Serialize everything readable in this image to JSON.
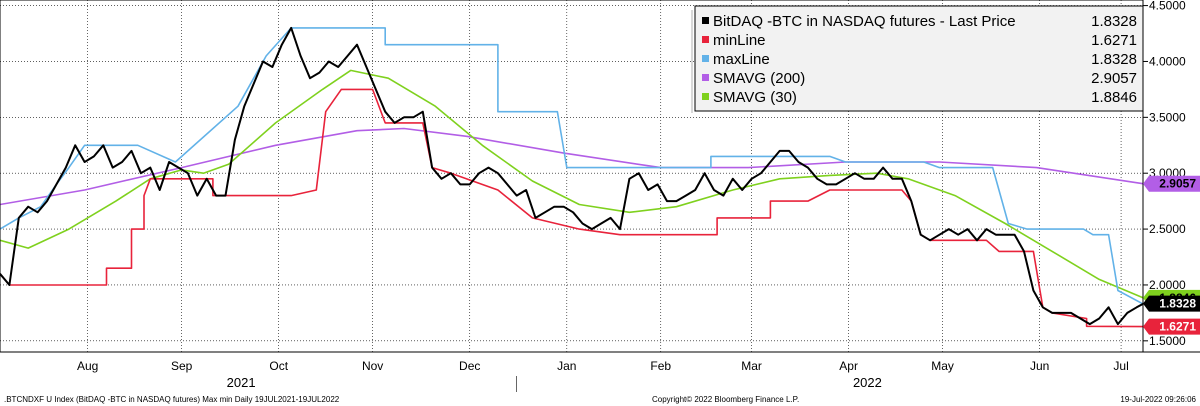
{
  "chart_data": {
    "type": "line",
    "xlim": [
      "2021-07-19",
      "2022-07-19"
    ],
    "ylim": [
      1.4,
      4.55
    ],
    "y_ticks": [
      "1.5000",
      "2.0000",
      "2.5000",
      "3.0000",
      "3.5000",
      "4.0000",
      "4.5000"
    ],
    "y_tick_values": [
      1.5,
      2.0,
      2.5,
      3.0,
      3.5,
      4.0,
      4.5
    ],
    "x_ticks": [
      {
        "label": "Aug",
        "date": "2021-08-16"
      },
      {
        "label": "Sep",
        "date": "2021-09-15"
      },
      {
        "label": "Oct",
        "date": "2021-10-16"
      },
      {
        "label": "Nov",
        "date": "2021-11-15"
      },
      {
        "label": "Dec",
        "date": "2021-12-16"
      },
      {
        "label": "Jan",
        "date": "2022-01-16"
      },
      {
        "label": "Feb",
        "date": "2022-02-15"
      },
      {
        "label": "Mar",
        "date": "2022-03-16"
      },
      {
        "label": "Apr",
        "date": "2022-04-16"
      },
      {
        "label": "May",
        "date": "2022-05-16"
      },
      {
        "label": "Jun",
        "date": "2022-06-16"
      },
      {
        "label": "Jul",
        "date": "2022-07-12"
      }
    ],
    "year_labels": [
      {
        "label": "2021",
        "date": "2021-10-04"
      },
      {
        "label": "2022",
        "date": "2022-04-22"
      }
    ],
    "year_divider": "2021-12-31",
    "grid": true,
    "legend_position": "top-right",
    "series": [
      {
        "name": "BitDAQ -BTC in NASDAQ futures - Last Price",
        "last_value": "1.8328",
        "color": "#000000",
        "points": [
          [
            "2021-07-19",
            2.1
          ],
          [
            "2021-07-22",
            2.0
          ],
          [
            "2021-07-25",
            2.6
          ],
          [
            "2021-07-28",
            2.7
          ],
          [
            "2021-07-31",
            2.65
          ],
          [
            "2021-08-03",
            2.75
          ],
          [
            "2021-08-06",
            2.9
          ],
          [
            "2021-08-09",
            3.05
          ],
          [
            "2021-08-12",
            3.25
          ],
          [
            "2021-08-15",
            3.1
          ],
          [
            "2021-08-18",
            3.15
          ],
          [
            "2021-08-21",
            3.25
          ],
          [
            "2021-08-24",
            3.05
          ],
          [
            "2021-08-27",
            3.1
          ],
          [
            "2021-08-30",
            3.2
          ],
          [
            "2021-09-02",
            3.0
          ],
          [
            "2021-09-05",
            3.05
          ],
          [
            "2021-09-08",
            2.85
          ],
          [
            "2021-09-11",
            3.1
          ],
          [
            "2021-09-14",
            3.05
          ],
          [
            "2021-09-17",
            3.0
          ],
          [
            "2021-09-20",
            2.8
          ],
          [
            "2021-09-23",
            2.95
          ],
          [
            "2021-09-26",
            2.8
          ],
          [
            "2021-09-29",
            2.8
          ],
          [
            "2021-10-02",
            3.3
          ],
          [
            "2021-10-05",
            3.6
          ],
          [
            "2021-10-08",
            3.8
          ],
          [
            "2021-10-11",
            4.0
          ],
          [
            "2021-10-14",
            3.95
          ],
          [
            "2021-10-17",
            4.15
          ],
          [
            "2021-10-20",
            4.3
          ],
          [
            "2021-10-23",
            4.05
          ],
          [
            "2021-10-26",
            3.85
          ],
          [
            "2021-10-29",
            3.9
          ],
          [
            "2021-11-01",
            4.0
          ],
          [
            "2021-11-04",
            3.95
          ],
          [
            "2021-11-07",
            4.05
          ],
          [
            "2021-11-10",
            4.15
          ],
          [
            "2021-11-13",
            3.95
          ],
          [
            "2021-11-16",
            3.75
          ],
          [
            "2021-11-19",
            3.55
          ],
          [
            "2021-11-22",
            3.45
          ],
          [
            "2021-11-25",
            3.5
          ],
          [
            "2021-11-28",
            3.5
          ],
          [
            "2021-12-01",
            3.55
          ],
          [
            "2021-12-04",
            3.05
          ],
          [
            "2021-12-07",
            2.95
          ],
          [
            "2021-12-10",
            3.0
          ],
          [
            "2021-12-13",
            2.9
          ],
          [
            "2021-12-16",
            2.9
          ],
          [
            "2021-12-19",
            3.0
          ],
          [
            "2021-12-22",
            3.05
          ],
          [
            "2021-12-25",
            3.0
          ],
          [
            "2021-12-28",
            2.9
          ],
          [
            "2021-12-31",
            2.8
          ],
          [
            "2022-01-03",
            2.85
          ],
          [
            "2022-01-06",
            2.6
          ],
          [
            "2022-01-09",
            2.65
          ],
          [
            "2022-01-12",
            2.7
          ],
          [
            "2022-01-15",
            2.7
          ],
          [
            "2022-01-18",
            2.65
          ],
          [
            "2022-01-21",
            2.55
          ],
          [
            "2022-01-24",
            2.5
          ],
          [
            "2022-01-27",
            2.55
          ],
          [
            "2022-01-30",
            2.6
          ],
          [
            "2022-02-02",
            2.5
          ],
          [
            "2022-02-05",
            2.95
          ],
          [
            "2022-02-08",
            3.0
          ],
          [
            "2022-02-11",
            2.85
          ],
          [
            "2022-02-14",
            2.9
          ],
          [
            "2022-02-17",
            2.75
          ],
          [
            "2022-02-20",
            2.75
          ],
          [
            "2022-02-23",
            2.8
          ],
          [
            "2022-02-26",
            2.85
          ],
          [
            "2022-03-01",
            3.0
          ],
          [
            "2022-03-04",
            2.85
          ],
          [
            "2022-03-07",
            2.8
          ],
          [
            "2022-03-10",
            2.95
          ],
          [
            "2022-03-13",
            2.85
          ],
          [
            "2022-03-16",
            2.95
          ],
          [
            "2022-03-19",
            3.0
          ],
          [
            "2022-03-22",
            3.1
          ],
          [
            "2022-03-25",
            3.2
          ],
          [
            "2022-03-28",
            3.2
          ],
          [
            "2022-03-31",
            3.1
          ],
          [
            "2022-04-03",
            3.05
          ],
          [
            "2022-04-06",
            2.95
          ],
          [
            "2022-04-09",
            2.9
          ],
          [
            "2022-04-12",
            2.9
          ],
          [
            "2022-04-15",
            2.95
          ],
          [
            "2022-04-18",
            3.0
          ],
          [
            "2022-04-21",
            2.95
          ],
          [
            "2022-04-24",
            2.95
          ],
          [
            "2022-04-27",
            3.05
          ],
          [
            "2022-04-30",
            2.95
          ],
          [
            "2022-05-03",
            2.95
          ],
          [
            "2022-05-06",
            2.75
          ],
          [
            "2022-05-09",
            2.45
          ],
          [
            "2022-05-12",
            2.4
          ],
          [
            "2022-05-15",
            2.45
          ],
          [
            "2022-05-18",
            2.5
          ],
          [
            "2022-05-21",
            2.45
          ],
          [
            "2022-05-24",
            2.5
          ],
          [
            "2022-05-27",
            2.4
          ],
          [
            "2022-05-30",
            2.5
          ],
          [
            "2022-06-02",
            2.45
          ],
          [
            "2022-06-05",
            2.45
          ],
          [
            "2022-06-08",
            2.45
          ],
          [
            "2022-06-11",
            2.3
          ],
          [
            "2022-06-14",
            1.95
          ],
          [
            "2022-06-17",
            1.8
          ],
          [
            "2022-06-20",
            1.75
          ],
          [
            "2022-06-23",
            1.75
          ],
          [
            "2022-06-26",
            1.75
          ],
          [
            "2022-06-29",
            1.7
          ],
          [
            "2022-07-02",
            1.65
          ],
          [
            "2022-07-05",
            1.7
          ],
          [
            "2022-07-08",
            1.8
          ],
          [
            "2022-07-11",
            1.65
          ],
          [
            "2022-07-14",
            1.75
          ],
          [
            "2022-07-17",
            1.8
          ],
          [
            "2022-07-19",
            1.83
          ]
        ]
      },
      {
        "name": "minLine",
        "last_value": "1.6271",
        "color": "#e8233b",
        "points": [
          [
            "2021-07-19",
            2.1
          ],
          [
            "2021-07-22",
            2.0
          ],
          [
            "2021-08-22",
            2.0
          ],
          [
            "2021-08-22",
            2.15
          ],
          [
            "2021-08-30",
            2.15
          ],
          [
            "2021-08-30",
            2.5
          ],
          [
            "2021-09-03",
            2.5
          ],
          [
            "2021-09-03",
            2.8
          ],
          [
            "2021-09-05",
            2.95
          ],
          [
            "2021-09-25",
            2.95
          ],
          [
            "2021-09-25",
            2.8
          ],
          [
            "2021-10-20",
            2.8
          ],
          [
            "2021-10-28",
            2.85
          ],
          [
            "2021-10-31",
            3.55
          ],
          [
            "2021-11-05",
            3.75
          ],
          [
            "2021-11-15",
            3.75
          ],
          [
            "2021-11-19",
            3.45
          ],
          [
            "2021-12-01",
            3.45
          ],
          [
            "2021-12-04",
            3.05
          ],
          [
            "2021-12-10",
            3.0
          ],
          [
            "2021-12-25",
            2.85
          ],
          [
            "2022-01-05",
            2.6
          ],
          [
            "2022-01-20",
            2.5
          ],
          [
            "2022-02-02",
            2.45
          ],
          [
            "2022-03-05",
            2.45
          ],
          [
            "2022-03-05",
            2.6
          ],
          [
            "2022-03-22",
            2.6
          ],
          [
            "2022-03-22",
            2.75
          ],
          [
            "2022-04-03",
            2.75
          ],
          [
            "2022-04-10",
            2.85
          ],
          [
            "2022-05-03",
            2.85
          ],
          [
            "2022-05-06",
            2.75
          ],
          [
            "2022-05-09",
            2.45
          ],
          [
            "2022-05-12",
            2.4
          ],
          [
            "2022-05-30",
            2.4
          ],
          [
            "2022-06-03",
            2.3
          ],
          [
            "2022-06-14",
            2.3
          ],
          [
            "2022-06-17",
            1.8
          ],
          [
            "2022-06-20",
            1.75
          ],
          [
            "2022-07-01",
            1.7
          ],
          [
            "2022-07-01",
            1.63
          ],
          [
            "2022-07-19",
            1.6271
          ]
        ]
      },
      {
        "name": "maxLine",
        "last_value": "1.8328",
        "color": "#62b2e8",
        "points": [
          [
            "2021-07-19",
            2.5
          ],
          [
            "2021-07-25",
            2.6
          ],
          [
            "2021-08-01",
            2.7
          ],
          [
            "2021-08-06",
            2.9
          ],
          [
            "2021-08-10",
            3.05
          ],
          [
            "2021-08-15",
            3.25
          ],
          [
            "2021-09-01",
            3.25
          ],
          [
            "2021-09-13",
            3.1
          ],
          [
            "2021-10-03",
            3.6
          ],
          [
            "2021-10-08",
            3.85
          ],
          [
            "2021-10-12",
            4.05
          ],
          [
            "2021-10-20",
            4.3
          ],
          [
            "2021-11-19",
            4.3
          ],
          [
            "2021-11-19",
            4.15
          ],
          [
            "2021-12-01",
            4.15
          ],
          [
            "2021-12-25",
            4.15
          ],
          [
            "2021-12-25",
            3.55
          ],
          [
            "2022-01-13",
            3.55
          ],
          [
            "2022-01-16",
            3.05
          ],
          [
            "2022-03-03",
            3.05
          ],
          [
            "2022-03-03",
            3.15
          ],
          [
            "2022-04-10",
            3.15
          ],
          [
            "2022-04-15",
            3.1
          ],
          [
            "2022-05-10",
            3.1
          ],
          [
            "2022-05-15",
            3.05
          ],
          [
            "2022-06-01",
            3.05
          ],
          [
            "2022-06-06",
            2.55
          ],
          [
            "2022-06-12",
            2.5
          ],
          [
            "2022-06-30",
            2.5
          ],
          [
            "2022-07-03",
            2.45
          ],
          [
            "2022-07-08",
            2.45
          ],
          [
            "2022-07-11",
            1.95
          ],
          [
            "2022-07-19",
            1.83
          ]
        ]
      },
      {
        "name": "SMAVG (200)",
        "last_value": "2.9057",
        "color": "#b25ee6",
        "points": [
          [
            "2021-07-19",
            2.72
          ],
          [
            "2021-08-15",
            2.85
          ],
          [
            "2021-09-15",
            3.05
          ],
          [
            "2021-10-15",
            3.25
          ],
          [
            "2021-11-10",
            3.38
          ],
          [
            "2021-11-25",
            3.4
          ],
          [
            "2021-12-15",
            3.33
          ],
          [
            "2022-01-15",
            3.18
          ],
          [
            "2022-02-15",
            3.05
          ],
          [
            "2022-03-15",
            3.05
          ],
          [
            "2022-04-15",
            3.1
          ],
          [
            "2022-05-15",
            3.1
          ],
          [
            "2022-06-15",
            3.05
          ],
          [
            "2022-07-19",
            2.9057
          ]
        ]
      },
      {
        "name": "SMAVG (30)",
        "last_value": "1.8846",
        "color": "#7fd11e",
        "points": [
          [
            "2021-07-19",
            2.4
          ],
          [
            "2021-07-28",
            2.33
          ],
          [
            "2021-08-10",
            2.5
          ],
          [
            "2021-08-25",
            2.75
          ],
          [
            "2021-09-05",
            2.95
          ],
          [
            "2021-09-15",
            3.03
          ],
          [
            "2021-09-22",
            3.0
          ],
          [
            "2021-09-30",
            3.08
          ],
          [
            "2021-10-15",
            3.45
          ],
          [
            "2021-10-30",
            3.75
          ],
          [
            "2021-11-08",
            3.92
          ],
          [
            "2021-11-20",
            3.85
          ],
          [
            "2021-12-05",
            3.6
          ],
          [
            "2021-12-20",
            3.25
          ],
          [
            "2022-01-05",
            2.93
          ],
          [
            "2022-01-20",
            2.72
          ],
          [
            "2022-02-05",
            2.65
          ],
          [
            "2022-02-20",
            2.7
          ],
          [
            "2022-03-10",
            2.85
          ],
          [
            "2022-03-25",
            2.95
          ],
          [
            "2022-04-10",
            2.98
          ],
          [
            "2022-04-25",
            3.0
          ],
          [
            "2022-05-05",
            2.95
          ],
          [
            "2022-05-20",
            2.8
          ],
          [
            "2022-06-05",
            2.55
          ],
          [
            "2022-06-20",
            2.3
          ],
          [
            "2022-07-05",
            2.05
          ],
          [
            "2022-07-19",
            1.8846
          ]
        ]
      }
    ]
  },
  "footer": {
    "left": ".BTCNDXF U Index (BitDAQ -BTC in NASDAQ futures) Max min  Daily 19JUL2021-19JUL2022",
    "center": "Copyright© 2022 Bloomberg Finance L.P.",
    "right": "19-Jul-2022 09:26:06"
  }
}
